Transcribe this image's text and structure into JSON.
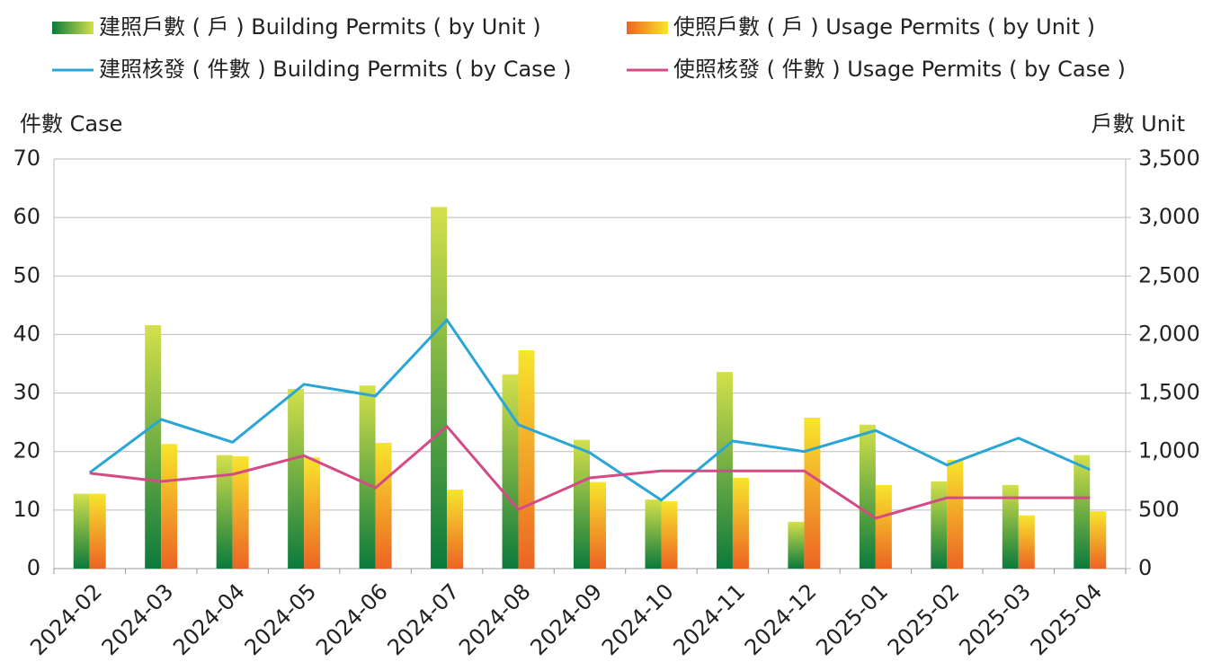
{
  "chart_data": {
    "type": "bar",
    "categories": [
      "2024-02",
      "2024-03",
      "2024-04",
      "2024-05",
      "2024-06",
      "2024-07",
      "2024-08",
      "2024-09",
      "2024-10",
      "2024-11",
      "2024-12",
      "2025-01",
      "2025-02",
      "2025-03",
      "2025-04"
    ],
    "series": [
      {
        "name": "建照戶數 ( 戶 ) Building Permits ( by Unit )",
        "type": "bar",
        "axis": "y2",
        "color": [
          "#d4e04a",
          "#0b7a3c"
        ],
        "values": [
          640,
          2080,
          970,
          1535,
          1565,
          3090,
          1660,
          1100,
          590,
          1680,
          400,
          1230,
          745,
          715,
          970
        ]
      },
      {
        "name": "使照戶數 ( 戶 ) Usage Permits ( by Unit )",
        "type": "bar",
        "axis": "y2",
        "color": [
          "#f7e52c",
          "#ec6424"
        ],
        "values": [
          640,
          1065,
          960,
          950,
          1075,
          675,
          1865,
          740,
          575,
          775,
          1290,
          714,
          930,
          455,
          490
        ]
      },
      {
        "name": "建照核發 ( 件數 ) Building Permits ( by Case )",
        "type": "line",
        "color": "#2aa6d6",
        "values": [
          16.4,
          25.5,
          21.6,
          31.5,
          29.5,
          42.5,
          24.6,
          19.8,
          11.7,
          21.8,
          20,
          23.6,
          17.7,
          22.3,
          16.9
        ]
      },
      {
        "name": "使照核發 ( 件數 ) Usage Permits ( by Case )",
        "type": "line",
        "color": "#d44a86",
        "values": [
          16.3,
          14.9,
          16.1,
          19.3,
          13.8,
          24.3,
          10.1,
          15.5,
          16.7,
          16.7,
          16.7,
          8.6,
          12.1,
          12.1,
          12.1
        ]
      }
    ],
    "ylabel": "件數 Case",
    "y2label": "戶數 Unit",
    "ylim": [
      0,
      70
    ],
    "yticks": [
      0,
      10,
      20,
      30,
      40,
      50,
      60,
      70
    ],
    "y2lim": [
      0,
      3500
    ],
    "y2ticks": [
      0,
      500,
      {
        "value": 1000,
        "label": "1,000"
      },
      {
        "value": 1500,
        "label": "1,500"
      },
      {
        "value": 2000,
        "label": "2,000"
      },
      {
        "value": 2500,
        "label": "2,500"
      },
      {
        "value": 3000,
        "label": "3,000"
      },
      {
        "value": 3500,
        "label": "3,500"
      }
    ],
    "grid": true
  }
}
